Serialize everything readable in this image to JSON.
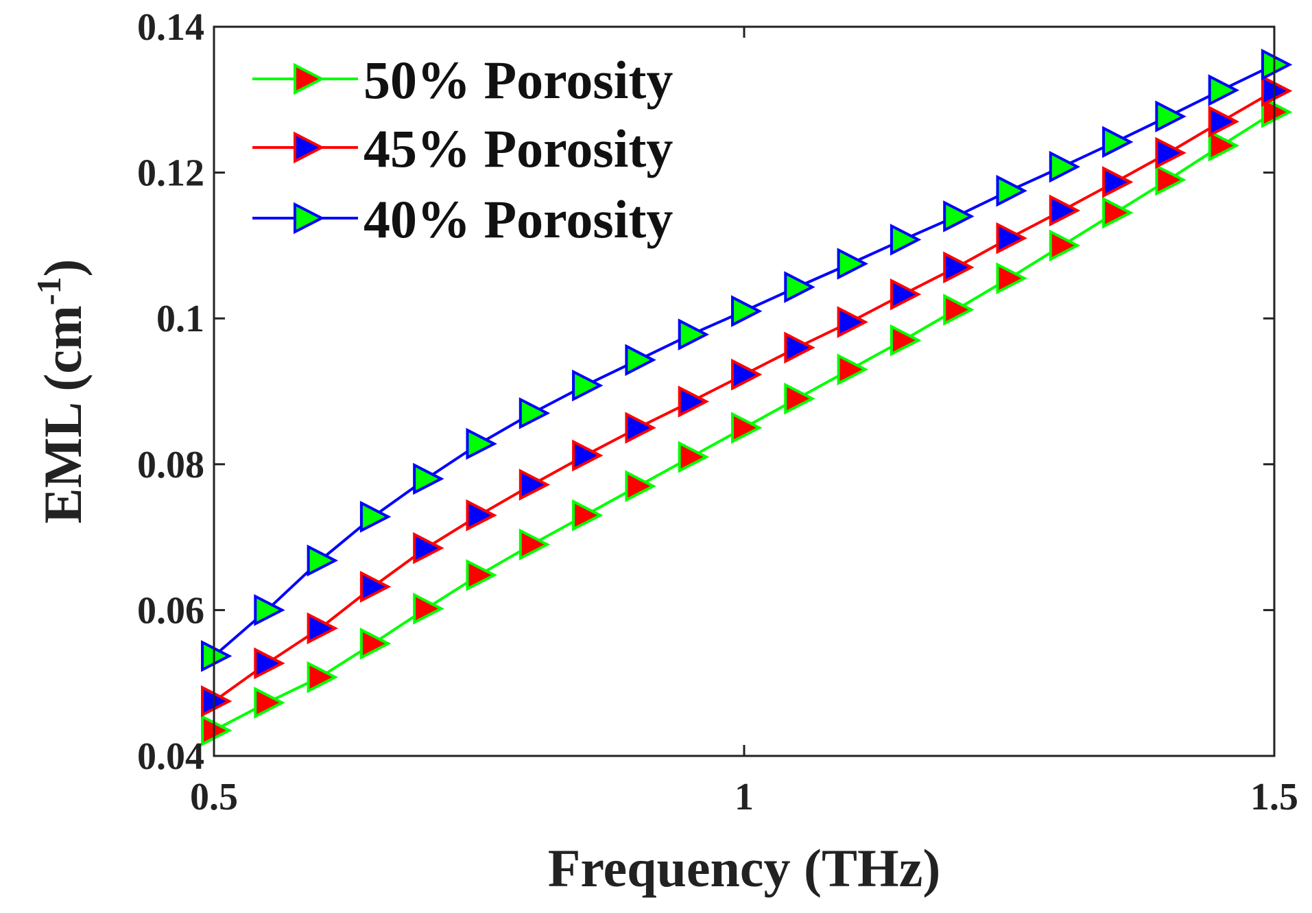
{
  "chart_data": {
    "type": "line",
    "title": "",
    "xlabel": "Frequency (THz)",
    "ylabel": "EML (cm",
    "ylabel_superscript": "-1",
    "ylabel_close": ")",
    "xlim": [
      0.5,
      1.5
    ],
    "ylim": [
      0.04,
      0.14
    ],
    "xticks": [
      0.5,
      1,
      1.5
    ],
    "xtick_labels": [
      "0.5",
      "1",
      "1.5"
    ],
    "yticks": [
      0.04,
      0.06,
      0.08,
      0.1,
      0.12,
      0.14
    ],
    "ytick_labels": [
      "0.04",
      "0.06",
      "0.08",
      "0.1",
      "0.12",
      "0.14"
    ],
    "grid": false,
    "legend_position": "top-left",
    "x": [
      0.5,
      0.55,
      0.6,
      0.65,
      0.7,
      0.75,
      0.8,
      0.85,
      0.9,
      0.95,
      1.0,
      1.05,
      1.1,
      1.15,
      1.2,
      1.25,
      1.3,
      1.35,
      1.4,
      1.45,
      1.5
    ],
    "series": [
      {
        "name": "50% Porosity",
        "line_color": "#00ff00",
        "marker_face": "#ff0000",
        "values": [
          0.0435,
          0.0473,
          0.0508,
          0.0554,
          0.0602,
          0.0648,
          0.069,
          0.073,
          0.077,
          0.081,
          0.085,
          0.089,
          0.093,
          0.097,
          0.1012,
          0.1055,
          0.11,
          0.1145,
          0.119,
          0.1237,
          0.1283
        ]
      },
      {
        "name": "45% Porosity",
        "line_color": "#ff0000",
        "marker_face": "#0000ff",
        "values": [
          0.0475,
          0.0527,
          0.0575,
          0.0632,
          0.0685,
          0.073,
          0.0772,
          0.0812,
          0.085,
          0.0886,
          0.0923,
          0.096,
          0.0995,
          0.1033,
          0.107,
          0.111,
          0.1148,
          0.1187,
          0.1227,
          0.127,
          0.1312
        ]
      },
      {
        "name": "40% Porosity",
        "line_color": "#0000ff",
        "marker_face": "#00ff00",
        "values": [
          0.0537,
          0.06,
          0.0668,
          0.0728,
          0.078,
          0.0828,
          0.087,
          0.0908,
          0.0943,
          0.0978,
          0.101,
          0.1043,
          0.1075,
          0.1108,
          0.114,
          0.1175,
          0.1208,
          0.1242,
          0.1277,
          0.1313,
          0.1348
        ]
      }
    ]
  }
}
